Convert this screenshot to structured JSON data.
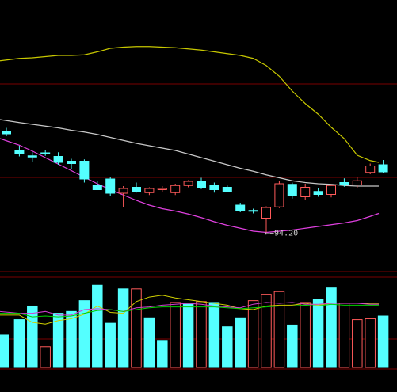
{
  "chart_data": [
    {
      "type": "candlestick",
      "panel": "price",
      "ylim": [
        88.0,
        132.0
      ],
      "grid": true,
      "colors": {
        "up": "#ff5a5a",
        "down": "#54ffff",
        "background": "#000000",
        "grid": "#7a0000"
      },
      "candles": [
        {
          "open": 111.2,
          "high": 111.8,
          "low": 110.4,
          "close": 110.8
        },
        {
          "open": 108.0,
          "high": 108.8,
          "low": 107.0,
          "close": 107.4
        },
        {
          "open": 107.1,
          "high": 107.7,
          "low": 106.0,
          "close": 106.9
        },
        {
          "open": 107.6,
          "high": 108.0,
          "low": 107.1,
          "close": 107.4
        },
        {
          "open": 107.0,
          "high": 107.7,
          "low": 105.6,
          "close": 106.0
        },
        {
          "open": 106.2,
          "high": 106.6,
          "low": 104.8,
          "close": 105.8
        },
        {
          "open": 106.2,
          "high": 106.5,
          "low": 102.6,
          "close": 103.2
        },
        {
          "open": 102.1,
          "high": 102.9,
          "low": 101.4,
          "close": 101.4
        },
        {
          "open": 103.2,
          "high": 103.5,
          "low": 100.3,
          "close": 100.8
        },
        {
          "open": 100.8,
          "high": 102.0,
          "low": 98.4,
          "close": 101.6
        },
        {
          "open": 101.8,
          "high": 102.6,
          "low": 100.9,
          "close": 101.1
        },
        {
          "open": 100.9,
          "high": 101.8,
          "low": 100.5,
          "close": 101.6
        },
        {
          "open": 101.4,
          "high": 102.0,
          "low": 101.0,
          "close": 101.6
        },
        {
          "open": 100.9,
          "high": 102.4,
          "low": 100.5,
          "close": 102.1
        },
        {
          "open": 102.1,
          "high": 103.0,
          "low": 101.8,
          "close": 102.8
        },
        {
          "open": 102.8,
          "high": 103.4,
          "low": 101.5,
          "close": 101.8
        },
        {
          "open": 102.1,
          "high": 102.6,
          "low": 100.9,
          "close": 101.4
        },
        {
          "open": 101.8,
          "high": 102.1,
          "low": 101.0,
          "close": 101.1
        },
        {
          "open": 98.8,
          "high": 99.2,
          "low": 97.6,
          "close": 97.8
        },
        {
          "open": 97.9,
          "high": 98.2,
          "low": 97.4,
          "close": 97.8
        },
        {
          "open": 96.6,
          "high": 98.6,
          "low": 94.2,
          "close": 98.4
        },
        {
          "open": 98.5,
          "high": 102.8,
          "low": 98.3,
          "close": 102.4
        },
        {
          "open": 102.3,
          "high": 102.6,
          "low": 99.9,
          "close": 100.4
        },
        {
          "open": 100.2,
          "high": 102.4,
          "low": 99.7,
          "close": 101.8
        },
        {
          "open": 101.1,
          "high": 101.6,
          "low": 100.2,
          "close": 100.6
        },
        {
          "open": 100.6,
          "high": 102.3,
          "low": 100.1,
          "close": 102.1
        },
        {
          "open": 102.6,
          "high": 103.3,
          "low": 101.9,
          "close": 102.2
        },
        {
          "open": 102.2,
          "high": 103.5,
          "low": 101.7,
          "close": 102.9
        },
        {
          "open": 104.3,
          "high": 105.8,
          "low": 104.0,
          "close": 105.4
        },
        {
          "open": 105.6,
          "high": 106.4,
          "low": 104.2,
          "close": 104.4
        }
      ],
      "moving_averages": [
        {
          "color": "#c8c800",
          "values": [
            123.1,
            123.5,
            123.6,
            123.8,
            124.0,
            124.0,
            124.1,
            124.6,
            125.2,
            125.4,
            125.5,
            125.5,
            125.4,
            125.3,
            125.1,
            124.9,
            124.6,
            124.3,
            124.0,
            123.5,
            122.3,
            120.5,
            118.0,
            115.9,
            114.1,
            111.9,
            110.0,
            107.2,
            106.3,
            106.0
          ]
        },
        {
          "color": "#c8c8c8",
          "values": [
            113.2,
            112.7,
            112.4,
            112.1,
            111.8,
            111.4,
            111.1,
            110.7,
            110.2,
            109.7,
            109.2,
            108.8,
            108.4,
            108.0,
            107.4,
            106.8,
            106.2,
            105.6,
            105.0,
            104.5,
            103.9,
            103.4,
            102.9,
            102.6,
            102.4,
            102.3,
            102.1,
            102.0,
            102.0,
            102.0
          ]
        },
        {
          "color": "#e040e0",
          "values": [
            110.0,
            108.9,
            107.9,
            106.8,
            105.7,
            104.6,
            103.5,
            102.4,
            101.4,
            100.5,
            99.6,
            98.8,
            98.2,
            97.8,
            97.3,
            96.7,
            96.0,
            95.4,
            94.9,
            94.4,
            94.2,
            94.4,
            94.6,
            94.9,
            95.2,
            95.5,
            95.8,
            96.2,
            96.9,
            97.4
          ]
        }
      ],
      "annotations": [
        {
          "text": "94.20",
          "candle_index": 20,
          "value": 94.2
        }
      ]
    },
    {
      "type": "bar",
      "panel": "volume",
      "ylim": [
        0,
        100
      ],
      "up_flags": [
        false,
        false,
        false,
        true,
        false,
        false,
        false,
        false,
        false,
        false,
        true,
        false,
        false,
        true,
        false,
        true,
        false,
        false,
        false,
        true,
        true,
        true,
        false,
        true,
        false,
        false,
        true,
        true,
        true,
        false
      ],
      "values": [
        36,
        53,
        68,
        23,
        60,
        62,
        74,
        91,
        49,
        87,
        87,
        55,
        30,
        72,
        70,
        73,
        72,
        45,
        55,
        74,
        81,
        84,
        47,
        72,
        75,
        88,
        71,
        53,
        54,
        57
      ],
      "lines": [
        {
          "color": "#d0d000",
          "values": [
            58,
            58,
            50,
            48,
            52,
            54,
            59,
            68,
            61,
            60,
            73,
            78,
            80,
            77,
            75,
            73,
            71,
            69,
            65,
            64,
            68,
            69,
            69,
            71,
            69,
            71,
            71,
            71,
            71,
            71
          ]
        },
        {
          "color": "#d040d0",
          "values": [
            62,
            60,
            60,
            62,
            58,
            58,
            64,
            65,
            64,
            62,
            66,
            67,
            69,
            70,
            71,
            70,
            68,
            67,
            66,
            70,
            72,
            71,
            72,
            70,
            70,
            71,
            71,
            71,
            70,
            70
          ]
        },
        {
          "color": "#00d000",
          "values": [
            60,
            60,
            56,
            57,
            56,
            57,
            60,
            63,
            64,
            62,
            64,
            66,
            67,
            67,
            67,
            67,
            67,
            66,
            65,
            66,
            67,
            68,
            68,
            69,
            68,
            70,
            69,
            69,
            69,
            69
          ]
        }
      ]
    }
  ]
}
